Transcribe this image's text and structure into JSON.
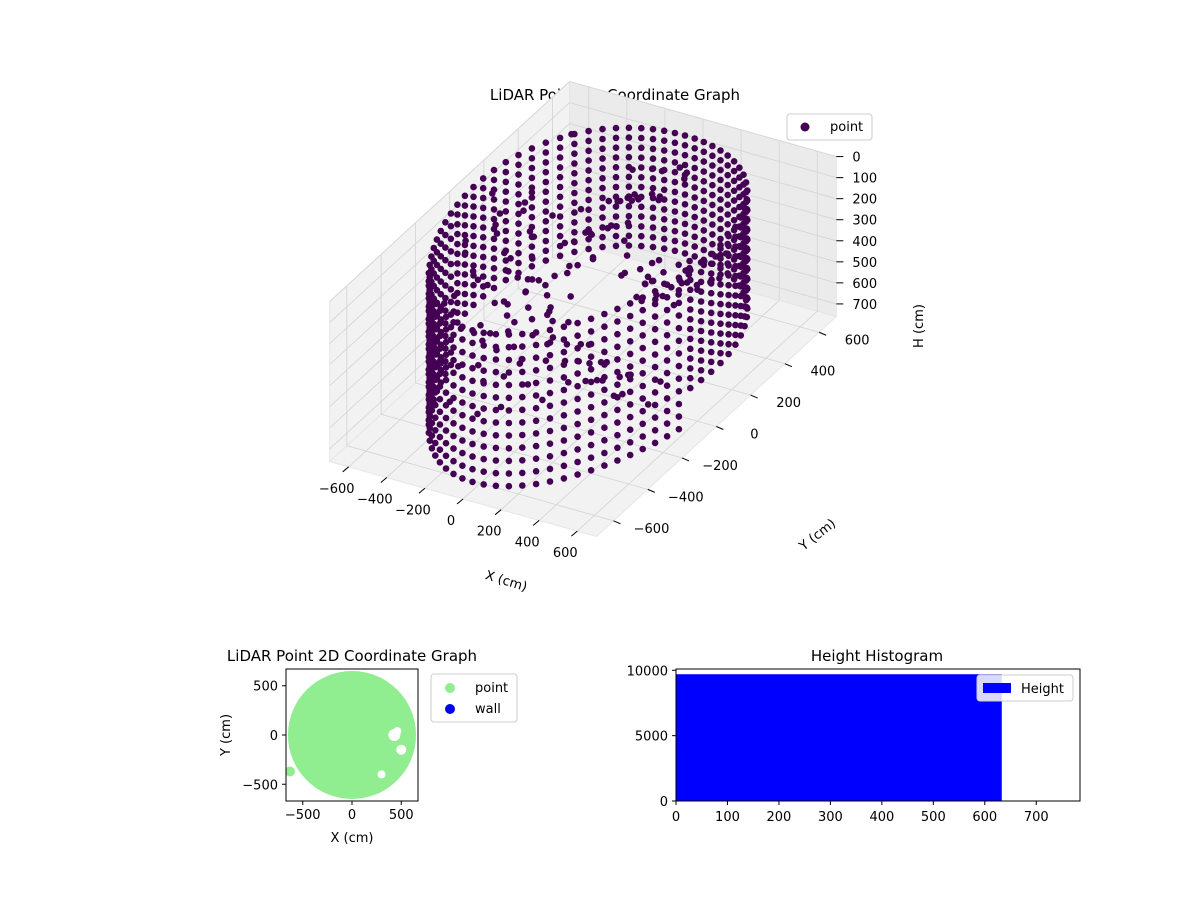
{
  "chart_data": [
    {
      "type": "scatter3d",
      "title": "LiDAR Point 3D Coordinate Graph",
      "xlabel": "X (cm)",
      "ylabel": "Y (cm)",
      "zlabel": "H (cm)",
      "xlim": [
        -700,
        700
      ],
      "ylim": [
        -700,
        700
      ],
      "zlim": [
        0,
        760
      ],
      "zaxis_inverted": true,
      "xticks": [
        -600,
        -400,
        -200,
        0,
        200,
        400,
        600
      ],
      "yticks": [
        -600,
        -400,
        -200,
        0,
        200,
        400,
        600
      ],
      "zticks": [
        0,
        100,
        200,
        300,
        400,
        500,
        600,
        700
      ],
      "grid": true,
      "legend": {
        "placement": "top-right",
        "entries": [
          "point"
        ]
      },
      "series": [
        {
          "name": "point",
          "color": "#440154",
          "shape": "cylindrical wall",
          "radius_cm": 620,
          "height_range_cm": [
            0,
            720
          ],
          "outlier": {
            "x": -600,
            "y": 600,
            "h": 150
          }
        }
      ]
    },
    {
      "type": "scatter",
      "title": "LiDAR Point 2D Coordinate Graph",
      "xlabel": "X (cm)",
      "ylabel": "Y (cm)",
      "xlim": [
        -670,
        670
      ],
      "ylim": [
        -670,
        670
      ],
      "xticks": [
        -500,
        0,
        500
      ],
      "yticks": [
        -500,
        0,
        500
      ],
      "legend": {
        "placement": "outside-right",
        "entries": [
          "point",
          "wall"
        ]
      },
      "series": [
        {
          "name": "point",
          "color": "#90ee90",
          "shape": "filled disk",
          "radius_cm": 650,
          "center": [
            0,
            0
          ],
          "outlier": [
            -630,
            -370
          ]
        },
        {
          "name": "wall",
          "color": "#0000ee",
          "points": []
        }
      ]
    },
    {
      "type": "bar",
      "title": "Height Histogram",
      "xlim": [
        0,
        785
      ],
      "ylim": [
        0,
        10100
      ],
      "xticks": [
        0,
        100,
        200,
        300,
        400,
        500,
        600,
        700
      ],
      "yticks": [
        0,
        5000,
        10000
      ],
      "legend": {
        "placement": "top-right",
        "entries": [
          "Height"
        ]
      },
      "series": [
        {
          "name": "Height",
          "color": "#0000ff",
          "bins": [
            {
              "x0": 0,
              "x1": 633,
              "count": 9700
            }
          ]
        }
      ]
    }
  ]
}
